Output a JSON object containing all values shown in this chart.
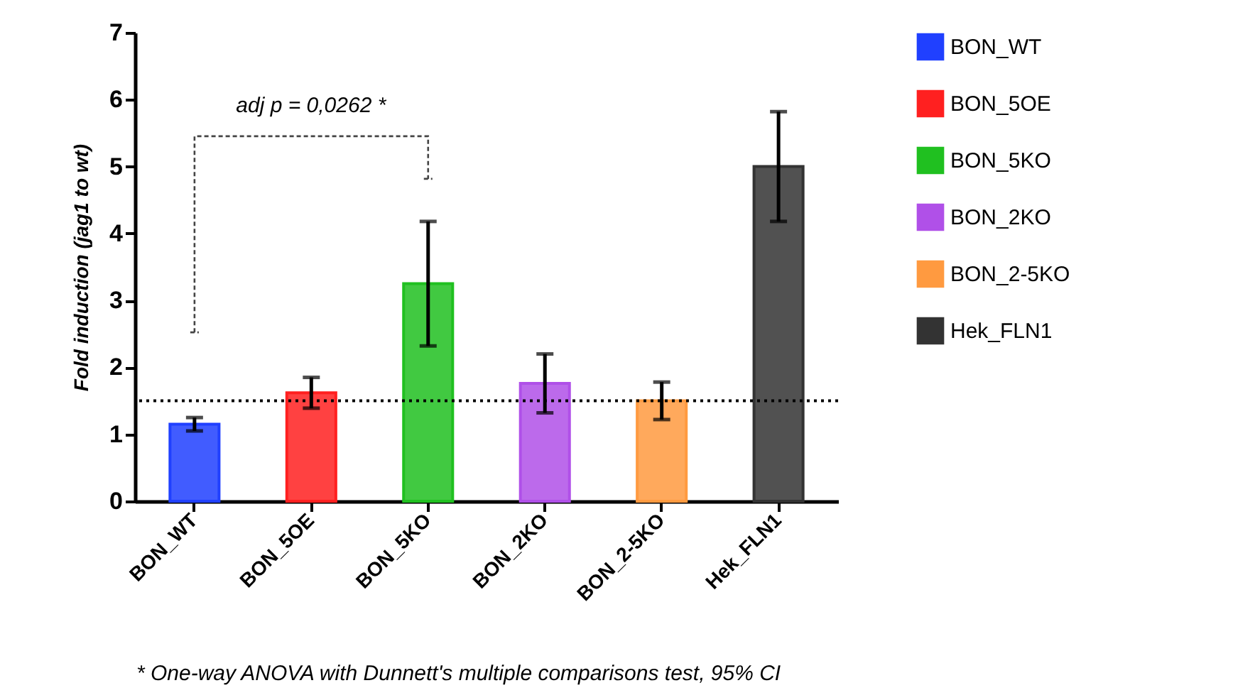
{
  "chart_data": {
    "type": "bar",
    "ylabel": "Fold induction (jag1 to wt)",
    "categories": [
      "BON_WT",
      "BON_5OE",
      "BON_5KO",
      "BON_2KO",
      "BON_2-5KO",
      "Hek_FLN1"
    ],
    "series": [
      {
        "name": "BON_WT",
        "color": "#2040ff",
        "values": [
          1.15,
          null,
          null,
          null,
          null,
          null
        ],
        "errors": [
          0.1,
          null,
          null,
          null,
          null,
          null
        ]
      },
      {
        "name": "BON_5OE",
        "color": "#ff2020",
        "values": [
          null,
          1.62,
          null,
          null,
          null,
          null
        ],
        "errors": [
          null,
          0.23,
          null,
          null,
          null,
          null
        ]
      },
      {
        "name": "BON_5KO",
        "color": "#20c020",
        "values": [
          null,
          null,
          3.25,
          null,
          null,
          null
        ],
        "errors": [
          null,
          null,
          0.93,
          null,
          null,
          null
        ]
      },
      {
        "name": "BON_2KO",
        "color": "#b050e8",
        "values": [
          null,
          null,
          null,
          1.76,
          null,
          null
        ],
        "errors": [
          null,
          null,
          null,
          0.44,
          null,
          null
        ]
      },
      {
        "name": "BON_2-5KO",
        "color": "#ff9a40",
        "values": [
          null,
          null,
          null,
          null,
          1.5,
          null
        ],
        "errors": [
          null,
          null,
          null,
          null,
          0.28,
          null
        ]
      },
      {
        "name": "Hek_FLN1",
        "color": "#333333",
        "values": [
          null,
          null,
          null,
          null,
          null,
          5.0
        ],
        "errors": [
          null,
          null,
          null,
          null,
          null,
          0.82
        ]
      }
    ],
    "ylim": [
      0,
      7
    ],
    "yticks": [
      0,
      1,
      2,
      3,
      4,
      5,
      6,
      7
    ],
    "ref_lines": [
      {
        "axis": "y",
        "value": 1.5,
        "line_style": "dotted"
      }
    ],
    "annotations": [
      "adj p = 0,0262 *",
      "* One-way ANOVA with Dunnett's multiple comparisons test, 95% CI"
    ],
    "legend": "right",
    "grid": false
  }
}
